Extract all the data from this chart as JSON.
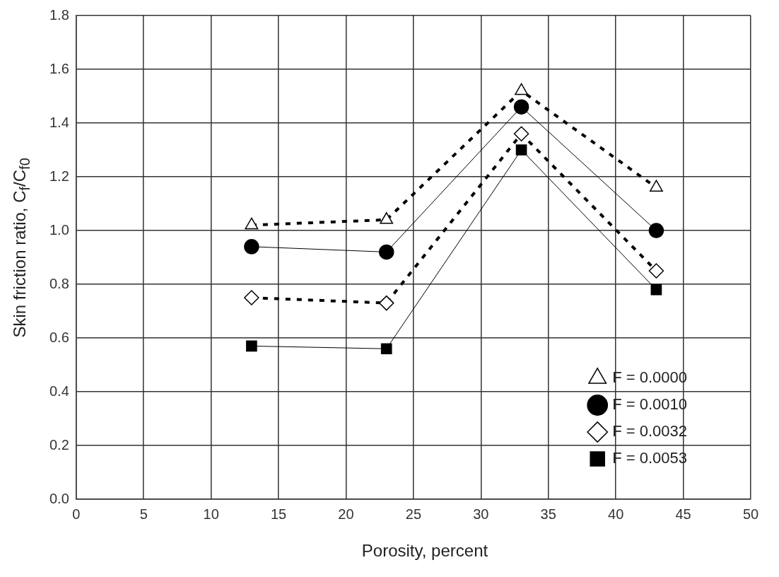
{
  "chart_data": {
    "type": "line",
    "xlabel": "Porosity, percent",
    "ylabel": "Skin friction ratio, C$_{f}$/C$_{f0}$",
    "xlim": [
      0,
      50
    ],
    "xticks": [
      0,
      5,
      10,
      15,
      20,
      25,
      30,
      35,
      40,
      45,
      50
    ],
    "ylim": [
      0,
      1.8
    ],
    "yticks": [
      {
        "value": 0,
        "label": "0.0"
      },
      0.2,
      0.4,
      0.6,
      0.8,
      {
        "value": 1,
        "label": "1.0"
      },
      1.2,
      1.4,
      1.6,
      1.8
    ],
    "x": [
      13,
      23,
      33,
      43
    ],
    "grid": true,
    "legend": "bottom right",
    "series": [
      {
        "name": "F = 0.0000",
        "color": "#000000",
        "marker": "triangle",
        "line_style": "dashed",
        "values": [
          1.02,
          1.04,
          1.52,
          1.16
        ]
      },
      {
        "name": "F = 0.0010",
        "color": "#000000",
        "marker": "circle",
        "line_style": "solid",
        "values": [
          0.94,
          0.92,
          1.46,
          1.0
        ]
      },
      {
        "name": "F = 0.0032",
        "color": "#000000",
        "marker": "diamond",
        "line_style": "dashed",
        "values": [
          0.75,
          0.73,
          1.36,
          0.85
        ]
      },
      {
        "name": "F = 0.0053",
        "color": "#000000",
        "marker": "square",
        "line_style": "solid",
        "values": [
          0.57,
          0.56,
          1.3,
          0.78
        ]
      }
    ]
  }
}
